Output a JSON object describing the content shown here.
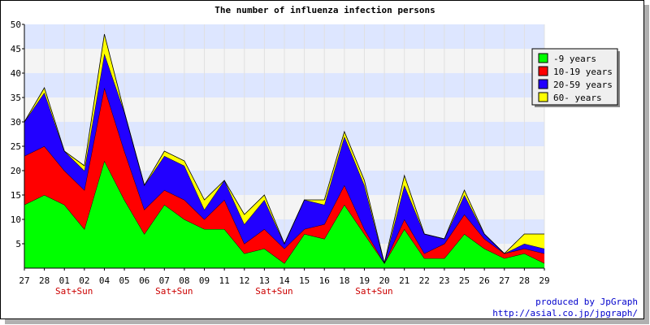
{
  "chart_data": {
    "type": "area",
    "stacked": true,
    "title": "The number of influenza infection persons",
    "categories": [
      "27",
      "28",
      "01",
      "02",
      "04",
      "05",
      "06",
      "07",
      "08",
      "09",
      "11",
      "12",
      "13",
      "14",
      "15",
      "16",
      "18",
      "19",
      "20",
      "21",
      "22",
      "23",
      "25",
      "26",
      "27",
      "28",
      "29"
    ],
    "weekend_labels": [
      {
        "index": 2,
        "text": "Sat+Sun"
      },
      {
        "index": 7,
        "text": "Sat+Sun"
      },
      {
        "index": 12,
        "text": "Sat+Sun"
      },
      {
        "index": 17,
        "text": "Sat+Sun"
      }
    ],
    "ylim": [
      0,
      50
    ],
    "yticks": [
      5,
      10,
      15,
      20,
      25,
      30,
      35,
      40,
      45,
      50
    ],
    "series": [
      {
        "name": "-9 years",
        "color": "#00ff00",
        "values": [
          13,
          15,
          13,
          8,
          22,
          14,
          7,
          13,
          10,
          8,
          8,
          3,
          4,
          1,
          7,
          6,
          13,
          7,
          1,
          8,
          2,
          2,
          7,
          4,
          2,
          3,
          1
        ]
      },
      {
        "name": "10-19 years",
        "color": "#ff0000",
        "values": [
          10,
          10,
          7,
          8,
          15,
          10,
          5,
          3,
          4,
          2,
          6,
          2,
          4,
          3,
          1,
          3,
          4,
          1,
          0,
          2,
          1,
          3,
          4,
          2,
          1,
          1,
          2
        ]
      },
      {
        "name": "20-59 years",
        "color": "#2200ff",
        "values": [
          7,
          11,
          4,
          4,
          7,
          8,
          5,
          7,
          7,
          2,
          4,
          4,
          6,
          1,
          6,
          4,
          10,
          9,
          0,
          7,
          4,
          1,
          4,
          1,
          0,
          1,
          1
        ]
      },
      {
        "name": "60- years",
        "color": "#ffff00",
        "values": [
          0,
          1,
          0,
          1,
          4,
          0,
          0,
          1,
          1,
          2,
          0,
          2,
          1,
          0,
          0,
          1,
          1,
          1,
          0,
          2,
          0,
          0,
          1,
          0,
          0,
          2,
          3
        ]
      }
    ],
    "legend_position": "top-right",
    "grid_bands": [
      "#dde6ff",
      "#f4f4f4"
    ]
  },
  "credit": {
    "line1": "produced by JpGraph",
    "line2": "http://asial.co.jp/jpgraph/"
  }
}
